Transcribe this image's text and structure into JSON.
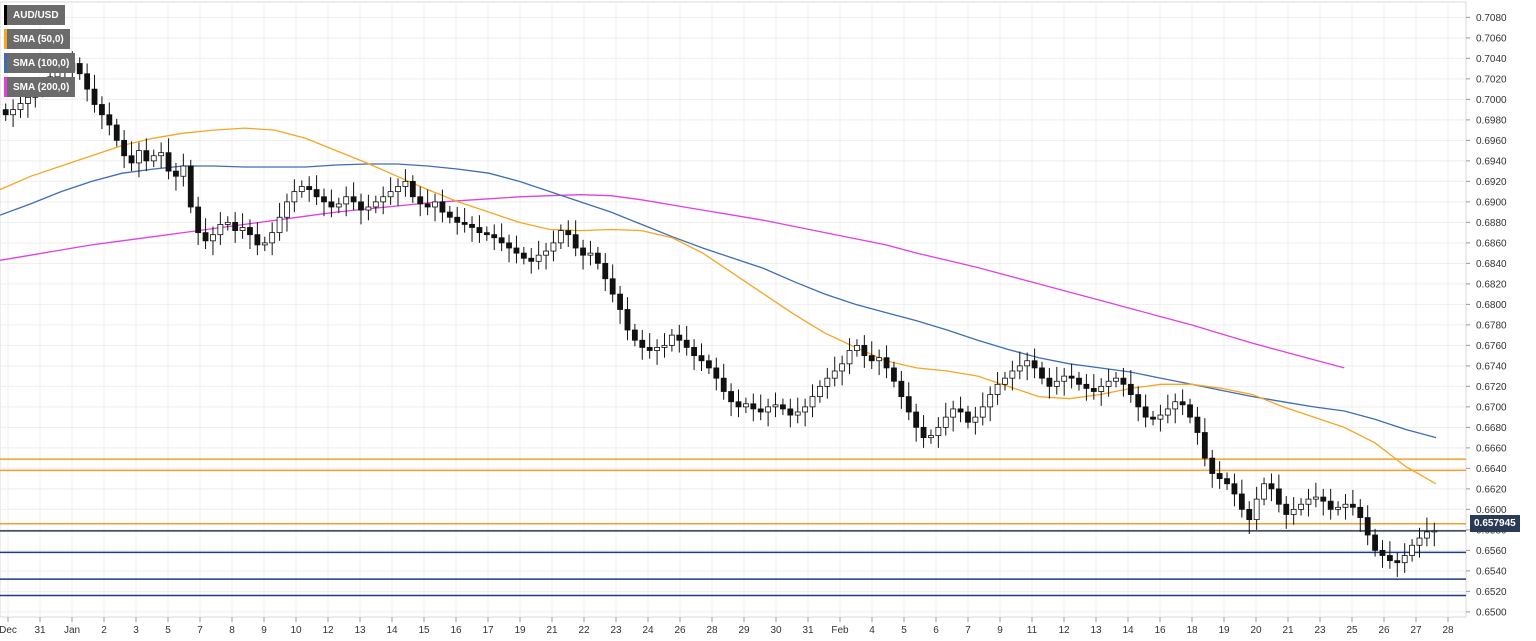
{
  "chart_data": {
    "type": "candlestick",
    "symbol": "AUD/USD",
    "legend": [
      {
        "label": "AUD/USD",
        "color": "#000000"
      },
      {
        "label": "SMA (50,0)",
        "color": "#f5a623"
      },
      {
        "label": "SMA (100,0)",
        "color": "#3d6db5"
      },
      {
        "label": "SMA (200,0)",
        "color": "#e040e0"
      }
    ],
    "current_price": "0.657945",
    "ylim": [
      0.6495,
      0.7095
    ],
    "y_ticks": [
      "0.7080",
      "0.7060",
      "0.7040",
      "0.7020",
      "0.7000",
      "0.6980",
      "0.6960",
      "0.6940",
      "0.6920",
      "0.6900",
      "0.6880",
      "0.6860",
      "0.6840",
      "0.6820",
      "0.6800",
      "0.6780",
      "0.6760",
      "0.6740",
      "0.6720",
      "0.6700",
      "0.6680",
      "0.6660",
      "0.6640",
      "0.6620",
      "0.6600",
      "0.6580",
      "0.6560",
      "0.6540",
      "0.6520",
      "0.6500"
    ],
    "x_ticks": [
      "Dec",
      "31",
      "Jan",
      "2",
      "3",
      "5",
      "7",
      "8",
      "9",
      "10",
      "12",
      "13",
      "14",
      "15",
      "16",
      "17",
      "19",
      "21",
      "22",
      "23",
      "24",
      "26",
      "28",
      "29",
      "30",
      "31",
      "Feb",
      "4",
      "5",
      "6",
      "7",
      "9",
      "11",
      "12",
      "13",
      "14",
      "16",
      "18",
      "19",
      "20",
      "21",
      "23",
      "25",
      "26",
      "27",
      "28"
    ],
    "horizontal_levels": [
      {
        "value": 0.6649,
        "color": "#f0a030"
      },
      {
        "value": 0.6638,
        "color": "#f0a030"
      },
      {
        "value": 0.6586,
        "color": "#f0a030"
      },
      {
        "value": 0.6579,
        "color": "#2b3a55"
      },
      {
        "value": 0.6558,
        "color": "#1a3a8a"
      },
      {
        "value": 0.6532,
        "color": "#1a3a8a"
      },
      {
        "value": 0.6516,
        "color": "#1a3a8a"
      }
    ],
    "sma50": [
      [
        0,
        0.6912
      ],
      [
        1,
        0.6925
      ],
      [
        2,
        0.6935
      ],
      [
        3,
        0.6945
      ],
      [
        4,
        0.6955
      ],
      [
        5,
        0.6962
      ],
      [
        6,
        0.6967
      ],
      [
        7,
        0.697
      ],
      [
        8,
        0.6972
      ],
      [
        9,
        0.697
      ],
      [
        10,
        0.6962
      ],
      [
        11,
        0.695
      ],
      [
        12,
        0.6938
      ],
      [
        13,
        0.6925
      ],
      [
        14,
        0.6912
      ],
      [
        15,
        0.69
      ],
      [
        16,
        0.689
      ],
      [
        17,
        0.688
      ],
      [
        18,
        0.6873
      ],
      [
        19,
        0.6872
      ],
      [
        20,
        0.6873
      ],
      [
        21,
        0.6872
      ],
      [
        22,
        0.6865
      ],
      [
        23,
        0.685
      ],
      [
        24,
        0.683
      ],
      [
        25,
        0.681
      ],
      [
        26,
        0.679
      ],
      [
        27,
        0.6772
      ],
      [
        28,
        0.6758
      ],
      [
        29,
        0.6745
      ],
      [
        30,
        0.6738
      ],
      [
        31,
        0.6735
      ],
      [
        32,
        0.673
      ],
      [
        33,
        0.672
      ],
      [
        34,
        0.671
      ],
      [
        35,
        0.6708
      ],
      [
        36,
        0.6712
      ],
      [
        37,
        0.6718
      ],
      [
        38,
        0.6722
      ],
      [
        39,
        0.6722
      ],
      [
        40,
        0.6718
      ],
      [
        41,
        0.6712
      ],
      [
        42,
        0.67
      ],
      [
        43,
        0.669
      ],
      [
        44,
        0.668
      ],
      [
        45,
        0.6665
      ],
      [
        46,
        0.6642
      ],
      [
        47,
        0.6625
      ]
    ],
    "sma100": [
      [
        0,
        0.6887
      ],
      [
        1,
        0.6898
      ],
      [
        2,
        0.691
      ],
      [
        3,
        0.692
      ],
      [
        4,
        0.6928
      ],
      [
        5,
        0.6932
      ],
      [
        6,
        0.6935
      ],
      [
        7,
        0.6935
      ],
      [
        8,
        0.6934
      ],
      [
        9,
        0.6934
      ],
      [
        10,
        0.6934
      ],
      [
        11,
        0.6936
      ],
      [
        12,
        0.6937
      ],
      [
        13,
        0.6937
      ],
      [
        14,
        0.6935
      ],
      [
        15,
        0.6932
      ],
      [
        16,
        0.6928
      ],
      [
        17,
        0.692
      ],
      [
        18,
        0.691
      ],
      [
        19,
        0.69
      ],
      [
        20,
        0.689
      ],
      [
        21,
        0.6878
      ],
      [
        22,
        0.6866
      ],
      [
        23,
        0.6855
      ],
      [
        24,
        0.6845
      ],
      [
        25,
        0.6835
      ],
      [
        26,
        0.6822
      ],
      [
        27,
        0.681
      ],
      [
        28,
        0.68
      ],
      [
        29,
        0.6792
      ],
      [
        30,
        0.6784
      ],
      [
        31,
        0.6775
      ],
      [
        32,
        0.6765
      ],
      [
        33,
        0.6756
      ],
      [
        34,
        0.6748
      ],
      [
        35,
        0.6742
      ],
      [
        36,
        0.6738
      ],
      [
        37,
        0.6734
      ],
      [
        38,
        0.6728
      ],
      [
        39,
        0.6722
      ],
      [
        40,
        0.6716
      ],
      [
        41,
        0.671
      ],
      [
        42,
        0.6705
      ],
      [
        43,
        0.67
      ],
      [
        44,
        0.6696
      ],
      [
        45,
        0.6688
      ],
      [
        46,
        0.6678
      ],
      [
        47,
        0.667
      ]
    ],
    "sma200": [
      [
        0,
        0.6843
      ],
      [
        1,
        0.6848
      ],
      [
        2,
        0.6853
      ],
      [
        3,
        0.6858
      ],
      [
        4,
        0.6862
      ],
      [
        5,
        0.6866
      ],
      [
        6,
        0.687
      ],
      [
        7,
        0.6874
      ],
      [
        8,
        0.6878
      ],
      [
        9,
        0.6882
      ],
      [
        10,
        0.6886
      ],
      [
        11,
        0.689
      ],
      [
        12,
        0.6893
      ],
      [
        13,
        0.6896
      ],
      [
        14,
        0.6899
      ],
      [
        15,
        0.6901
      ],
      [
        16,
        0.6903
      ],
      [
        17,
        0.6905
      ],
      [
        18,
        0.6906
      ],
      [
        19,
        0.6907
      ],
      [
        20,
        0.6906
      ],
      [
        21,
        0.6902
      ],
      [
        22,
        0.6897
      ],
      [
        23,
        0.6892
      ],
      [
        24,
        0.6887
      ],
      [
        25,
        0.6882
      ],
      [
        26,
        0.6876
      ],
      [
        27,
        0.687
      ],
      [
        28,
        0.6864
      ],
      [
        29,
        0.6858
      ],
      [
        30,
        0.685
      ],
      [
        31,
        0.6843
      ],
      [
        32,
        0.6836
      ],
      [
        33,
        0.6828
      ],
      [
        34,
        0.682
      ],
      [
        35,
        0.6812
      ],
      [
        36,
        0.6804
      ],
      [
        37,
        0.6796
      ],
      [
        38,
        0.6788
      ],
      [
        39,
        0.678
      ],
      [
        40,
        0.6771
      ],
      [
        41,
        0.6762
      ],
      [
        42,
        0.6754
      ],
      [
        43,
        0.6746
      ],
      [
        44,
        0.6738
      ]
    ],
    "closes": [
      0.6985,
      0.699,
      0.6996,
      0.7002,
      0.7008,
      0.7015,
      0.7022,
      0.703,
      0.7028,
      0.7035,
      0.7025,
      0.701,
      0.6995,
      0.6985,
      0.6975,
      0.696,
      0.6945,
      0.6938,
      0.695,
      0.694,
      0.6945,
      0.6948,
      0.693,
      0.6925,
      0.6935,
      0.6895,
      0.687,
      0.6862,
      0.6868,
      0.6878,
      0.688,
      0.6872,
      0.6875,
      0.6868,
      0.6858,
      0.686,
      0.687,
      0.6885,
      0.69,
      0.691,
      0.6915,
      0.6912,
      0.6905,
      0.69,
      0.6895,
      0.6898,
      0.6905,
      0.69,
      0.6892,
      0.6895,
      0.69,
      0.6905,
      0.691,
      0.6915,
      0.692,
      0.6905,
      0.6898,
      0.6895,
      0.69,
      0.689,
      0.6885,
      0.688,
      0.6878,
      0.6875,
      0.687,
      0.6868,
      0.6865,
      0.686,
      0.6855,
      0.685,
      0.6845,
      0.6842,
      0.6848,
      0.6852,
      0.686,
      0.6872,
      0.6868,
      0.6855,
      0.6848,
      0.685,
      0.684,
      0.6825,
      0.681,
      0.6795,
      0.6775,
      0.6765,
      0.6758,
      0.6755,
      0.6758,
      0.676,
      0.677,
      0.6765,
      0.6758,
      0.675,
      0.6745,
      0.6738,
      0.6728,
      0.6715,
      0.6705,
      0.67,
      0.6703,
      0.6698,
      0.6695,
      0.67,
      0.6702,
      0.6698,
      0.6692,
      0.6695,
      0.67,
      0.671,
      0.672,
      0.6728,
      0.6735,
      0.6742,
      0.6755,
      0.676,
      0.675,
      0.6745,
      0.6748,
      0.6738,
      0.6725,
      0.671,
      0.6695,
      0.668,
      0.667,
      0.6672,
      0.668,
      0.669,
      0.6698,
      0.6695,
      0.6685,
      0.669,
      0.67,
      0.6712,
      0.6722,
      0.6728,
      0.6735,
      0.674,
      0.6745,
      0.6738,
      0.6728,
      0.672,
      0.6725,
      0.673,
      0.6728,
      0.6722,
      0.6718,
      0.6715,
      0.672,
      0.6725,
      0.6728,
      0.6722,
      0.6712,
      0.67,
      0.669,
      0.6688,
      0.6692,
      0.6698,
      0.6705,
      0.6702,
      0.669,
      0.6675,
      0.665,
      0.6635,
      0.663,
      0.6625,
      0.6615,
      0.66,
      0.659,
      0.661,
      0.6625,
      0.662,
      0.6605,
      0.6595,
      0.66,
      0.6605,
      0.661,
      0.6612,
      0.6608,
      0.66,
      0.6602,
      0.6605,
      0.6602,
      0.6592,
      0.6575,
      0.656,
      0.6555,
      0.655,
      0.6548,
      0.6555,
      0.6565,
      0.6572,
      0.6578,
      0.6579
    ]
  }
}
